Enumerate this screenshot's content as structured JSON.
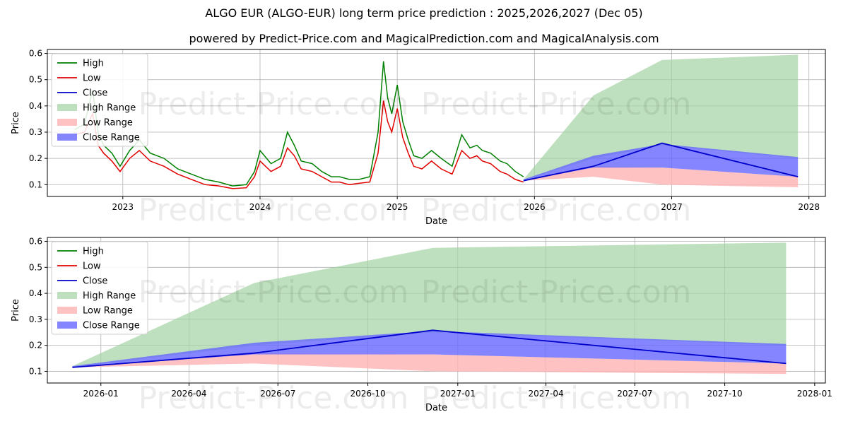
{
  "title": "ALGO EUR (ALGO-EUR) long term price prediction : 2025,2026,2027 (Dec 05)",
  "subtitle": "powered by Predict-Price.com and MagicalPrediction.com and MagicalAnalysis.com",
  "watermark": "Predict-Price.com",
  "colors": {
    "high": "#008000",
    "low": "#e00000",
    "close": "#0000cc",
    "high_range": "#a3d3a3",
    "low_range": "#ffb3b3",
    "close_range": "#6666ff",
    "grid": "#b0b0b0"
  },
  "legend": [
    "High",
    "Low",
    "Close",
    "High Range",
    "Low Range",
    "Close Range"
  ],
  "chart_data": [
    {
      "type": "line",
      "panel": "top",
      "title": "",
      "xlabel": "Date",
      "ylabel": "Price",
      "xlim": [
        2022.45,
        2028.12
      ],
      "ylim": [
        0.055,
        0.615
      ],
      "yticks": [
        0.1,
        0.2,
        0.3,
        0.4,
        0.5,
        0.6
      ],
      "ytick_labels": [
        "0.1",
        "0.2",
        "0.3",
        "0.4",
        "0.5",
        "0.6"
      ],
      "xticks": [
        2023,
        2024,
        2025,
        2026,
        2027,
        2028
      ],
      "xtick_labels": [
        "2023",
        "2024",
        "2025",
        "2026",
        "2027",
        "2028"
      ],
      "history": {
        "t": [
          2022.65,
          2022.72,
          2022.78,
          2022.82,
          2022.86,
          2022.92,
          2022.98,
          2023.05,
          2023.12,
          2023.2,
          2023.3,
          2023.4,
          2023.5,
          2023.6,
          2023.7,
          2023.8,
          2023.9,
          2023.96,
          2024.0,
          2024.08,
          2024.15,
          2024.2,
          2024.25,
          2024.3,
          2024.38,
          2024.45,
          2024.52,
          2024.58,
          2024.65,
          2024.72,
          2024.8,
          2024.86,
          2024.9,
          2024.93,
          2024.96,
          2025.0,
          2025.04,
          2025.08,
          2025.12,
          2025.18,
          2025.25,
          2025.32,
          2025.4,
          2025.47,
          2025.53,
          2025.58,
          2025.62,
          2025.68,
          2025.75,
          2025.8,
          2025.86,
          2025.92
        ],
        "high": [
          0.31,
          0.33,
          0.46,
          0.3,
          0.25,
          0.22,
          0.17,
          0.23,
          0.27,
          0.22,
          0.2,
          0.16,
          0.14,
          0.12,
          0.11,
          0.095,
          0.1,
          0.15,
          0.23,
          0.18,
          0.2,
          0.3,
          0.25,
          0.19,
          0.18,
          0.15,
          0.13,
          0.13,
          0.12,
          0.12,
          0.13,
          0.3,
          0.57,
          0.43,
          0.37,
          0.48,
          0.34,
          0.27,
          0.21,
          0.2,
          0.23,
          0.2,
          0.17,
          0.29,
          0.24,
          0.25,
          0.23,
          0.22,
          0.19,
          0.18,
          0.15,
          0.13
        ],
        "low": [
          0.29,
          0.3,
          0.37,
          0.25,
          0.22,
          0.19,
          0.15,
          0.2,
          0.23,
          0.19,
          0.17,
          0.14,
          0.12,
          0.1,
          0.095,
          0.085,
          0.088,
          0.13,
          0.19,
          0.15,
          0.17,
          0.24,
          0.21,
          0.16,
          0.15,
          0.13,
          0.11,
          0.11,
          0.1,
          0.105,
          0.11,
          0.22,
          0.42,
          0.34,
          0.3,
          0.39,
          0.28,
          0.22,
          0.17,
          0.16,
          0.19,
          0.16,
          0.14,
          0.23,
          0.2,
          0.21,
          0.19,
          0.18,
          0.15,
          0.14,
          0.12,
          0.11
        ]
      },
      "forecast": {
        "t": [
          2025.92,
          2026.43,
          2026.93,
          2027.92
        ],
        "high_range_upper": [
          0.12,
          0.44,
          0.575,
          0.595
        ],
        "high_range_lower": [
          0.115,
          0.2,
          0.25,
          0.2
        ],
        "low_range_upper": [
          0.115,
          0.17,
          0.165,
          0.13
        ],
        "low_range_lower": [
          0.115,
          0.13,
          0.1,
          0.09
        ],
        "close_range_upper": [
          0.12,
          0.21,
          0.255,
          0.205
        ],
        "close_range_lower": [
          0.115,
          0.165,
          0.165,
          0.13
        ],
        "close": [
          0.115,
          0.17,
          0.258,
          0.13
        ]
      }
    },
    {
      "type": "line",
      "panel": "bottom",
      "title": "",
      "xlabel": "Date",
      "ylabel": "Price",
      "xlim": [
        2025.85,
        2028.03
      ],
      "ylim": [
        0.055,
        0.615
      ],
      "yticks": [
        0.1,
        0.2,
        0.3,
        0.4,
        0.5,
        0.6
      ],
      "ytick_labels": [
        "0.1",
        "0.2",
        "0.3",
        "0.4",
        "0.5",
        "0.6"
      ],
      "xticks": [
        2026.0,
        2026.247,
        2026.496,
        2026.748,
        2027.0,
        2027.247,
        2027.496,
        2027.748,
        2028.0
      ],
      "xtick_labels": [
        "2026-01",
        "2026-04",
        "2026-07",
        "2026-10",
        "2027-01",
        "2027-04",
        "2027-07",
        "2027-10",
        "2028-01"
      ],
      "forecast": {
        "t": [
          2025.92,
          2026.43,
          2026.93,
          2027.92
        ],
        "high_range_upper": [
          0.12,
          0.44,
          0.575,
          0.595
        ],
        "high_range_lower": [
          0.115,
          0.2,
          0.25,
          0.2
        ],
        "low_range_upper": [
          0.115,
          0.17,
          0.165,
          0.13
        ],
        "low_range_lower": [
          0.115,
          0.13,
          0.1,
          0.09
        ],
        "close_range_upper": [
          0.12,
          0.21,
          0.255,
          0.205
        ],
        "close_range_lower": [
          0.115,
          0.165,
          0.165,
          0.13
        ],
        "close": [
          0.115,
          0.17,
          0.258,
          0.13
        ]
      }
    }
  ]
}
